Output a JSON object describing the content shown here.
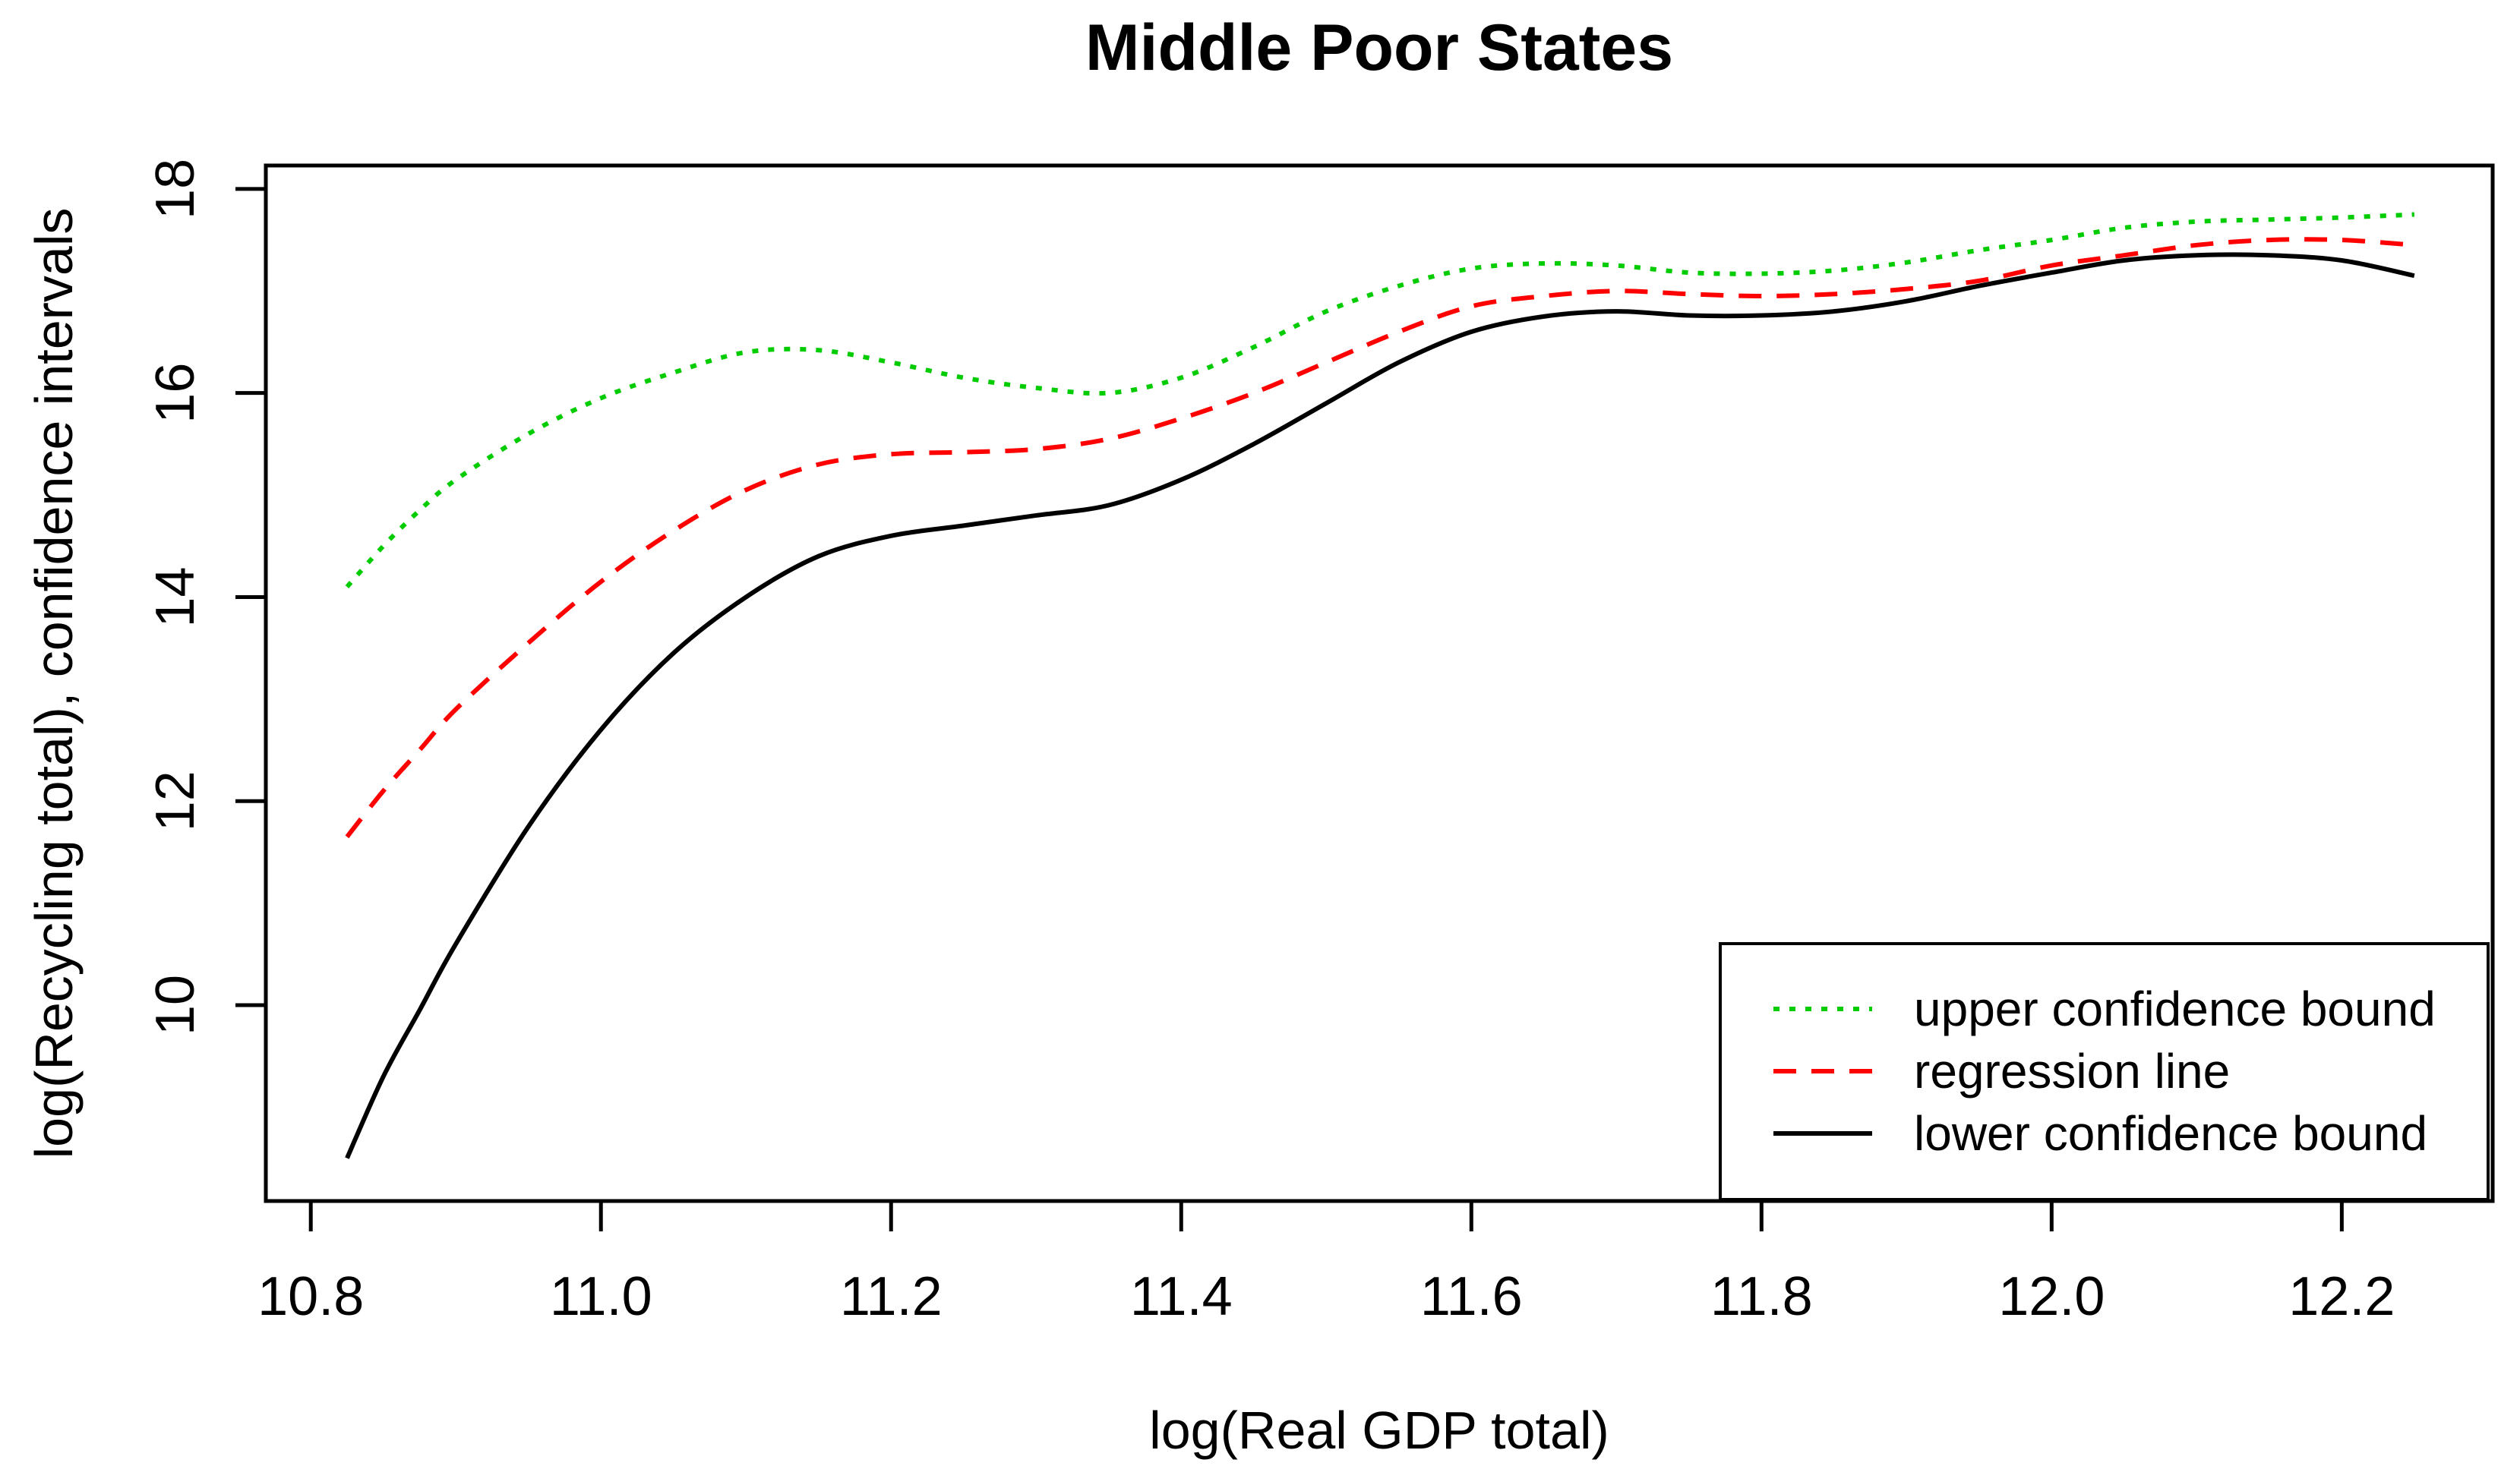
{
  "chart_data": {
    "type": "line",
    "title": "Middle Poor States",
    "xlabel": "log(Real GDP total)",
    "ylabel": "log(Recycling total), confidence intervals",
    "xlim": [
      10.769,
      12.304
    ],
    "ylim": [
      8.08,
      18.23
    ],
    "x_ticks": [
      10.8,
      11.0,
      11.2,
      11.4,
      11.6,
      11.8,
      12.0,
      12.2
    ],
    "x_tick_labels": [
      "10.8",
      "11.0",
      "11.2",
      "11.4",
      "11.6",
      "11.8",
      "12.0",
      "12.2"
    ],
    "y_ticks": [
      10,
      12,
      14,
      16,
      18
    ],
    "y_tick_labels": [
      "10",
      "12",
      "14",
      "16",
      "18"
    ],
    "grid": false,
    "legend_position": "bottom-right",
    "x": [
      10.825,
      10.85,
      10.875,
      10.9,
      10.95,
      11.0,
      11.05,
      11.1,
      11.15,
      11.2,
      11.25,
      11.3,
      11.35,
      11.4,
      11.45,
      11.5,
      11.55,
      11.6,
      11.65,
      11.7,
      11.75,
      11.8,
      11.85,
      11.9,
      11.95,
      12.0,
      12.05,
      12.1,
      12.15,
      12.2,
      12.25
    ],
    "series": [
      {
        "name": "upper confidence bound",
        "color": "#00CC00",
        "style": "dotted",
        "values": [
          14.1,
          14.5,
          14.85,
          15.15,
          15.6,
          15.95,
          16.2,
          16.4,
          16.42,
          16.3,
          16.15,
          16.05,
          16.0,
          16.15,
          16.45,
          16.8,
          17.05,
          17.22,
          17.27,
          17.25,
          17.18,
          17.17,
          17.2,
          17.28,
          17.4,
          17.5,
          17.62,
          17.68,
          17.7,
          17.72,
          17.75
        ]
      },
      {
        "name": "regression line",
        "color": "#FF0000",
        "style": "dashed",
        "values": [
          11.65,
          12.1,
          12.5,
          12.9,
          13.55,
          14.15,
          14.65,
          15.05,
          15.3,
          15.4,
          15.42,
          15.45,
          15.55,
          15.75,
          16.0,
          16.3,
          16.6,
          16.85,
          16.95,
          17.0,
          16.97,
          16.95,
          16.97,
          17.02,
          17.1,
          17.25,
          17.35,
          17.45,
          17.5,
          17.5,
          17.45
        ]
      },
      {
        "name": "lower confidence bound",
        "color": "#000000",
        "style": "solid",
        "values": [
          8.5,
          9.3,
          9.95,
          10.6,
          11.75,
          12.7,
          13.45,
          14.0,
          14.4,
          14.6,
          14.7,
          14.8,
          14.9,
          15.15,
          15.5,
          15.9,
          16.3,
          16.6,
          16.75,
          16.8,
          16.76,
          16.76,
          16.8,
          16.9,
          17.05,
          17.18,
          17.3,
          17.35,
          17.35,
          17.3,
          17.15
        ]
      }
    ],
    "legend": [
      "upper confidence bound",
      "regression line",
      "lower confidence bound"
    ],
    "axis_color": "#000000",
    "background_color": "#ffffff"
  }
}
